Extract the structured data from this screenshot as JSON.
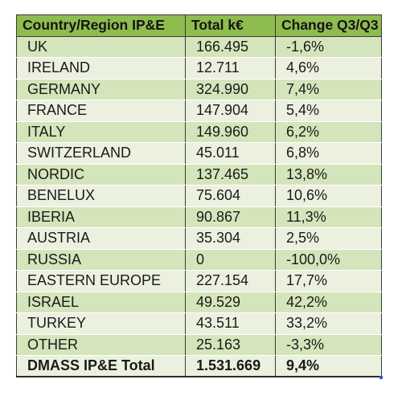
{
  "table": {
    "headers": [
      "Country/Region IP&E",
      "Total k€",
      "Change Q3/Q3"
    ],
    "rows": [
      [
        "UK",
        "166.495",
        "-1,6%"
      ],
      [
        "IRELAND",
        "12.711",
        "4,6%"
      ],
      [
        "GERMANY",
        "324.990",
        "7,4%"
      ],
      [
        "FRANCE",
        "147.904",
        "5,4%"
      ],
      [
        "ITALY",
        "149.960",
        "6,2%"
      ],
      [
        "SWITZERLAND",
        "45.011",
        "6,8%"
      ],
      [
        "NORDIC",
        "137.465",
        "13,8%"
      ],
      [
        "BENELUX",
        "75.604",
        "10,6%"
      ],
      [
        "IBERIA",
        "90.867",
        "11,3%"
      ],
      [
        "AUSTRIA",
        "35.304",
        "2,5%"
      ],
      [
        "RUSSIA",
        "0",
        "-100,0%"
      ],
      [
        "EASTERN EUROPE",
        "227.154",
        "17,7%"
      ],
      [
        "ISRAEL",
        "49.529",
        "42,2%"
      ],
      [
        "TURKEY",
        "43.511",
        "33,2%"
      ],
      [
        "OTHER",
        "25.163",
        "-3,3%"
      ]
    ],
    "total": [
      "DMASS IP&E Total",
      "1.531.669",
      "9,4%"
    ]
  },
  "colors": {
    "header_bg": "#8fbc4f",
    "row_dark": "#d4e5bb",
    "row_light": "#ebf1de",
    "border": "#3a3a3a"
  }
}
